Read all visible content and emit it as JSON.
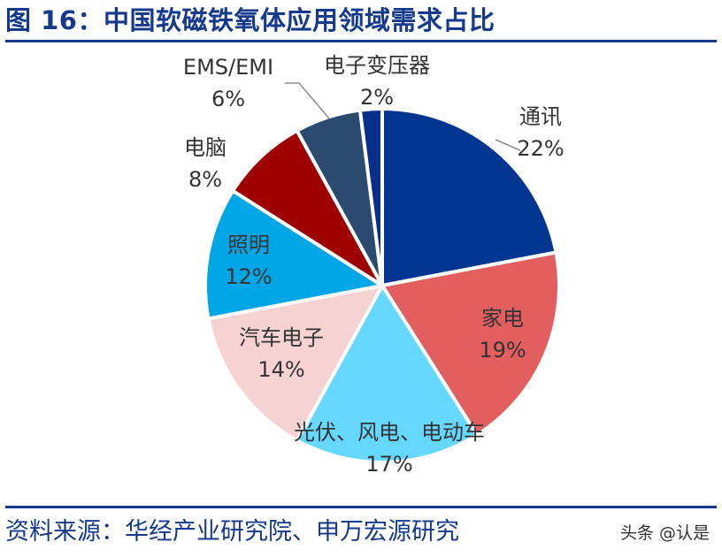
{
  "header": {
    "title": "图 16：中国软磁铁氧体应用领域需求占比"
  },
  "footer": {
    "source": "资料来源：华经产业研究院、申万宏源研究",
    "watermark": "头条 @认是"
  },
  "chart_data": {
    "type": "pie",
    "title": "图 16：中国软磁铁氧体应用领域需求占比",
    "series": [
      {
        "name": "通讯",
        "value": 22,
        "label": "22%",
        "color": "#003591"
      },
      {
        "name": "家电",
        "value": 19,
        "label": "19%",
        "color": "#e35e5e"
      },
      {
        "name": "光伏、风电、电动车",
        "value": 17,
        "label": "17%",
        "color": "#66d8ff"
      },
      {
        "name": "汽车电子",
        "value": 14,
        "label": "14%",
        "color": "#f7d2d2"
      },
      {
        "name": "照明",
        "value": 12,
        "label": "12%",
        "color": "#00a6e6"
      },
      {
        "name": "电脑",
        "value": 8,
        "label": "8%",
        "color": "#9e0000"
      },
      {
        "name": "EMS/EMI",
        "value": 6,
        "label": "6%",
        "color": "#2a4a70"
      },
      {
        "name": "电子变压器",
        "value": 2,
        "label": "2%",
        "color": "#0a2f8a"
      }
    ],
    "start_angle_deg": 0,
    "direction": "clockwise",
    "label_color": "#333333"
  }
}
